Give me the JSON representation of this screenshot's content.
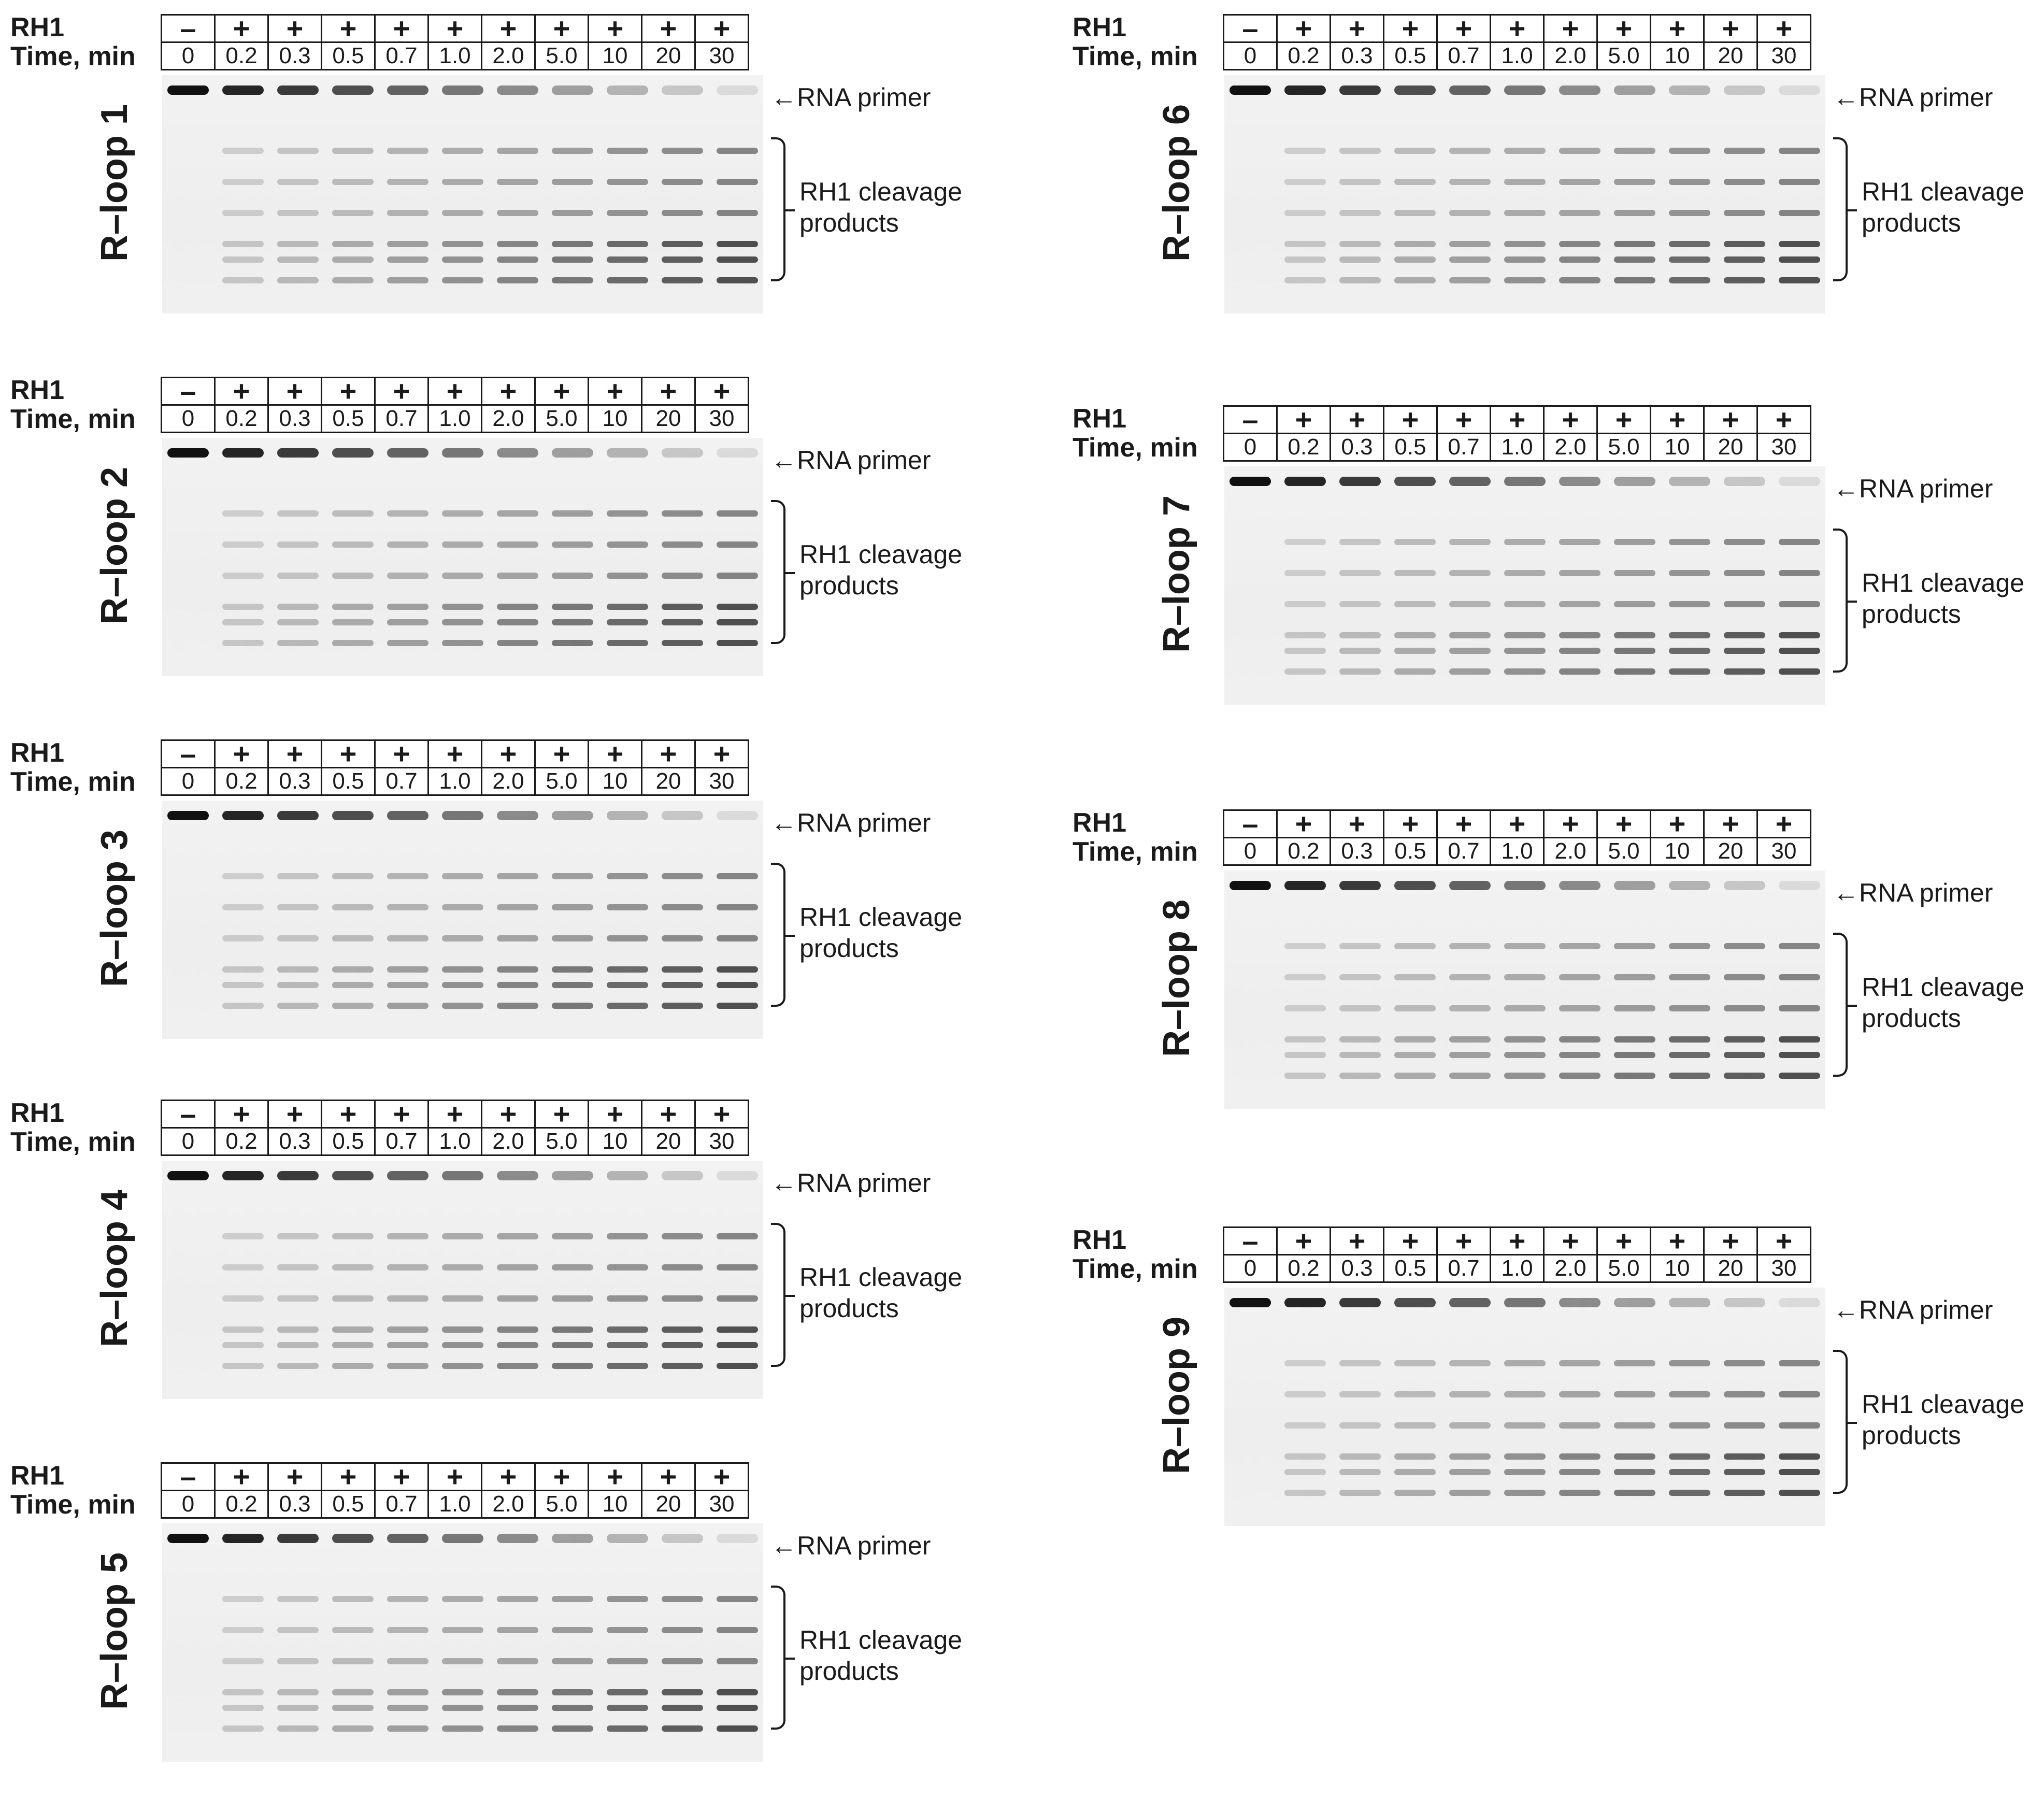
{
  "header": {
    "rh1_label": "RH1",
    "time_label": "Time, min"
  },
  "rh1_signs": [
    "–",
    "+",
    "+",
    "+",
    "+",
    "+",
    "+",
    "+",
    "+",
    "+",
    "+"
  ],
  "times": [
    "0",
    "0.2",
    "0.3",
    "0.5",
    "0.7",
    "1.0",
    "2.0",
    "5.0",
    "10",
    "20",
    "30"
  ],
  "labels": {
    "primer": "RNA primer",
    "products_line1": "RH1 cleavage",
    "products_line2": "products"
  },
  "panels": [
    {
      "title": "R–loop 1"
    },
    {
      "title": "R–loop 2"
    },
    {
      "title": "R–loop 3"
    },
    {
      "title": "R–loop 4"
    },
    {
      "title": "R–loop 5"
    },
    {
      "title": "R–loop 6"
    },
    {
      "title": "R–loop 7"
    },
    {
      "title": "R–loop 8"
    },
    {
      "title": "R–loop 9"
    }
  ],
  "colors": {
    "band": "#111111",
    "gel_background": "#efefef"
  }
}
